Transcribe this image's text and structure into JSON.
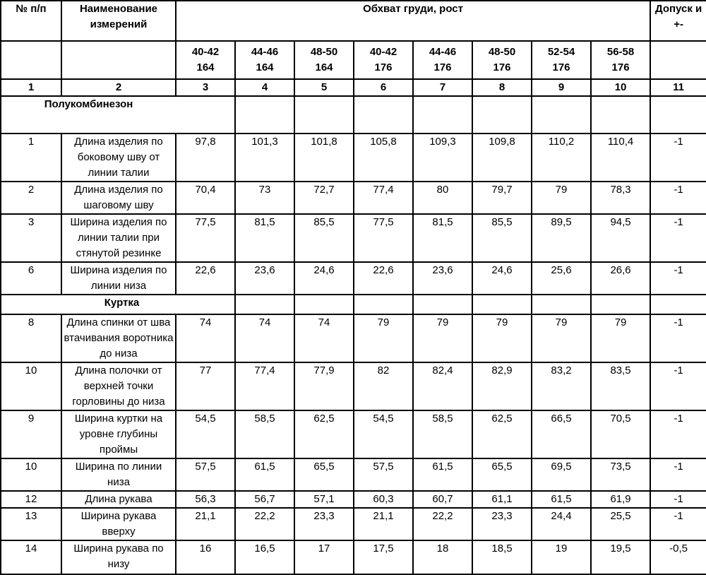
{
  "header": {
    "col_no": "№ п/п",
    "col_name": "Наименование измерений",
    "col_group": "Обхват груди, рост",
    "col_tol": "Допуск и +-",
    "sizes": [
      {
        "chest": "40-42",
        "height": "164"
      },
      {
        "chest": "44-46",
        "height": "164"
      },
      {
        "chest": "48-50",
        "height": "164"
      },
      {
        "chest": "40-42",
        "height": "176"
      },
      {
        "chest": "44-46",
        "height": "176"
      },
      {
        "chest": "48-50",
        "height": "176"
      },
      {
        "chest": "52-54",
        "height": "176"
      },
      {
        "chest": "56-58",
        "height": "176"
      }
    ],
    "col_numbers": [
      "1",
      "2",
      "3",
      "4",
      "5",
      "6",
      "7",
      "8",
      "9",
      "10",
      "11"
    ]
  },
  "sections": [
    {
      "title": "Полукомбинезон",
      "rows": [
        {
          "no": "1",
          "name": "Длина изделия по боковому шву от линии талии",
          "values": [
            "97,8",
            "101,3",
            "101,8",
            "105,8",
            "109,3",
            "109,8",
            "110,2",
            "110,4"
          ],
          "tol": "-1"
        },
        {
          "no": "2",
          "name": "Длина изделия по шаговому шву",
          "values": [
            "70,4",
            "73",
            "72,7",
            "77,4",
            "80",
            "79,7",
            "79",
            "78,3"
          ],
          "tol": "-1"
        },
        {
          "no": "3",
          "name": "Ширина изделия по линии талии при стянутой резинке",
          "values": [
            "77,5",
            "81,5",
            "85,5",
            "77,5",
            "81,5",
            "85,5",
            "89,5",
            "94,5"
          ],
          "tol": "-1"
        },
        {
          "no": "6",
          "name": "Ширина изделия по линии низа",
          "values": [
            "22,6",
            "23,6",
            "24,6",
            "22,6",
            "23,6",
            "24,6",
            "25,6",
            "26,6"
          ],
          "tol": "-1"
        }
      ]
    },
    {
      "title": "Куртка",
      "rows": [
        {
          "no": "8",
          "name": "Длина спинки от шва втачивания воротника до низа",
          "values": [
            "74",
            "74",
            "74",
            "79",
            "79",
            "79",
            "79",
            "79"
          ],
          "tol": "-1"
        },
        {
          "no": "10",
          "name": "Длина полочки от верхней точки горловины до низа",
          "values": [
            "77",
            "77,4",
            "77,9",
            "82",
            "82,4",
            "82,9",
            "83,2",
            "83,5"
          ],
          "tol": "-1"
        },
        {
          "no": "9",
          "name": "Ширина куртки на уровне глубины проймы",
          "values": [
            "54,5",
            "58,5",
            "62,5",
            "54,5",
            "58,5",
            "62,5",
            "66,5",
            "70,5"
          ],
          "tol": "-1"
        },
        {
          "no": "10",
          "name": "Ширина по линии низа",
          "values": [
            "57,5",
            "61,5",
            "65,5",
            "57,5",
            "61,5",
            "65,5",
            "69,5",
            "73,5"
          ],
          "tol": "-1"
        },
        {
          "no": "12",
          "name": "Длина рукава",
          "values": [
            "56,3",
            "56,7",
            "57,1",
            "60,3",
            "60,7",
            "61,1",
            "61,5",
            "61,9"
          ],
          "tol": "-1"
        },
        {
          "no": "13",
          "name": "Ширина рукава вверху",
          "values": [
            "21,1",
            "22,2",
            "23,3",
            "21,1",
            "22,2",
            "23,3",
            "24,4",
            "25,5"
          ],
          "tol": "-1"
        },
        {
          "no": "14",
          "name": "Ширина рукава по низу",
          "values": [
            "16",
            "16,5",
            "17",
            "17,5",
            "18",
            "18,5",
            "19",
            "19,5"
          ],
          "tol": "-0,5"
        }
      ]
    }
  ]
}
